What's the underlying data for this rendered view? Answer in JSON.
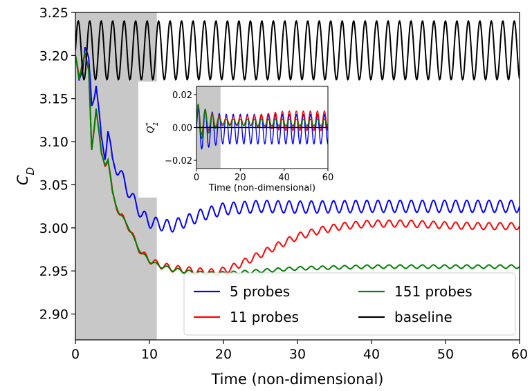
{
  "chart_data": {
    "type": "line",
    "main": {
      "xlabel": "Time (non-dimensional)",
      "ylabel": "C_D",
      "xlim": [
        0,
        60
      ],
      "ylim": [
        2.87,
        3.25
      ],
      "xticks": [
        "0",
        "10",
        "20",
        "30",
        "40",
        "50",
        "60"
      ],
      "yticks": [
        "2.90",
        "2.95",
        "3.00",
        "3.05",
        "3.10",
        "3.15",
        "3.20",
        "3.25"
      ],
      "shaded_region": [
        0,
        11
      ],
      "series": [
        {
          "name": "5 probes",
          "color": "#0000ff",
          "trend": [
            [
              0,
              3.2
            ],
            [
              0.5,
              3.165
            ],
            [
              1,
              3.19
            ],
            [
              1.3,
              3.215
            ],
            [
              1.8,
              3.19
            ],
            [
              2.2,
              3.14
            ],
            [
              2.8,
              3.17
            ],
            [
              3.5,
              3.1
            ],
            [
              4,
              3.085
            ],
            [
              4.4,
              3.115
            ],
            [
              5,
              3.075
            ],
            [
              6,
              3.065
            ],
            [
              7,
              3.045
            ],
            [
              8,
              3.03
            ],
            [
              9,
              3.015
            ],
            [
              10,
              3.007
            ],
            [
              11,
              3.005
            ],
            [
              12,
              3.003
            ],
            [
              13,
              3.002
            ],
            [
              15,
              3.008
            ],
            [
              17,
              3.015
            ],
            [
              20,
              3.022
            ],
            [
              25,
              3.025
            ],
            [
              30,
              3.024
            ],
            [
              40,
              3.025
            ],
            [
              50,
              3.025
            ],
            [
              60,
              3.025
            ]
          ],
          "osc_amp": 0.007,
          "osc_period": 1.5
        },
        {
          "name": "11 probes",
          "color": "#ff0000",
          "trend": [
            [
              0,
              3.2
            ],
            [
              0.5,
              3.17
            ],
            [
              1,
              3.195
            ],
            [
              1.3,
              3.205
            ],
            [
              1.8,
              3.18
            ],
            [
              2.2,
              3.09
            ],
            [
              2.8,
              3.14
            ],
            [
              3.5,
              3.085
            ],
            [
              4,
              3.075
            ],
            [
              4.4,
              3.08
            ],
            [
              5,
              3.04
            ],
            [
              6,
              3.015
            ],
            [
              7,
              3.005
            ],
            [
              8,
              2.985
            ],
            [
              9,
              2.97
            ],
            [
              10,
              2.963
            ],
            [
              11,
              2.958
            ],
            [
              13,
              2.953
            ],
            [
              16,
              2.95
            ],
            [
              19,
              2.948
            ],
            [
              21,
              2.953
            ],
            [
              24,
              2.965
            ],
            [
              27,
              2.978
            ],
            [
              30,
              2.99
            ],
            [
              33,
              2.997
            ],
            [
              36,
              3.002
            ],
            [
              40,
              3.005
            ],
            [
              45,
              3.005
            ],
            [
              50,
              3.003
            ],
            [
              55,
              3.002
            ],
            [
              60,
              3.002
            ]
          ],
          "osc_amp": 0.004,
          "osc_period": 1.5
        },
        {
          "name": "151 probes",
          "color": "#008000",
          "trend": [
            [
              0,
              3.2
            ],
            [
              0.5,
              3.17
            ],
            [
              1,
              3.195
            ],
            [
              1.3,
              3.205
            ],
            [
              1.8,
              3.18
            ],
            [
              2.2,
              3.09
            ],
            [
              2.8,
              3.14
            ],
            [
              3.5,
              3.085
            ],
            [
              4,
              3.075
            ],
            [
              4.4,
              3.08
            ],
            [
              5,
              3.04
            ],
            [
              6,
              3.015
            ],
            [
              7,
              3.005
            ],
            [
              8,
              2.985
            ],
            [
              9,
              2.97
            ],
            [
              10,
              2.962
            ],
            [
              11,
              2.957
            ],
            [
              13,
              2.952
            ],
            [
              16,
              2.948
            ],
            [
              19,
              2.947
            ],
            [
              22,
              2.948
            ],
            [
              25,
              2.95
            ],
            [
              30,
              2.953
            ],
            [
              40,
              2.955
            ],
            [
              50,
              2.955
            ],
            [
              60,
              2.955
            ]
          ],
          "osc_amp": 0.002,
          "osc_period": 1.5
        },
        {
          "name": "baseline",
          "color": "#000000",
          "trend": [
            [
              0,
              3.206
            ],
            [
              60,
              3.206
            ]
          ],
          "osc_amp": 0.034,
          "osc_period": 1.55
        }
      ]
    },
    "inset": {
      "xlabel": "Time (non-dimensional)",
      "ylabel": "Q_1^*",
      "xlim": [
        0,
        60
      ],
      "ylim": [
        -0.025,
        0.025
      ],
      "xticks": [
        "0",
        "20",
        "40",
        "60"
      ],
      "yticks": [
        "−0.02",
        "0.00",
        "0.02"
      ],
      "shaded_region": [
        0,
        11
      ],
      "series": [
        {
          "name": "5 probes",
          "color": "#0000ff",
          "offset": -0.001,
          "amp_trend": [
            [
              0,
              0.012
            ],
            [
              3,
              0.012
            ],
            [
              8,
              0.01
            ],
            [
              12,
              0.009
            ],
            [
              60,
              0.009
            ]
          ],
          "period": 3.2
        },
        {
          "name": "11 probes",
          "color": "#ff0000",
          "offset": 0.004,
          "amp_trend": [
            [
              0,
              0.01
            ],
            [
              8,
              0.004
            ],
            [
              12,
              0.002
            ],
            [
              25,
              0.003
            ],
            [
              40,
              0.006
            ],
            [
              60,
              0.006
            ]
          ],
          "period": 3.2
        },
        {
          "name": "151 probes",
          "color": "#008000",
          "offset": 0.003,
          "amp_trend": [
            [
              0,
              0.012
            ],
            [
              8,
              0.004
            ],
            [
              12,
              0.002
            ],
            [
              60,
              0.002
            ]
          ],
          "period": 3.2
        },
        {
          "name": "baseline",
          "color": "#000000",
          "offset": 0.0,
          "amp_trend": [
            [
              0,
              0.0
            ],
            [
              60,
              0.0
            ]
          ],
          "period": 3.2
        }
      ]
    },
    "legend": {
      "placement": "lower-right",
      "entries": [
        {
          "label": "5 probes",
          "color": "#0000ff"
        },
        {
          "label": "11 probes",
          "color": "#ff0000"
        },
        {
          "label": "151 probes",
          "color": "#008000"
        },
        {
          "label": "baseline",
          "color": "#000000"
        }
      ]
    },
    "colors": {
      "shade": "#c8c8c8",
      "axis": "#000000"
    }
  }
}
